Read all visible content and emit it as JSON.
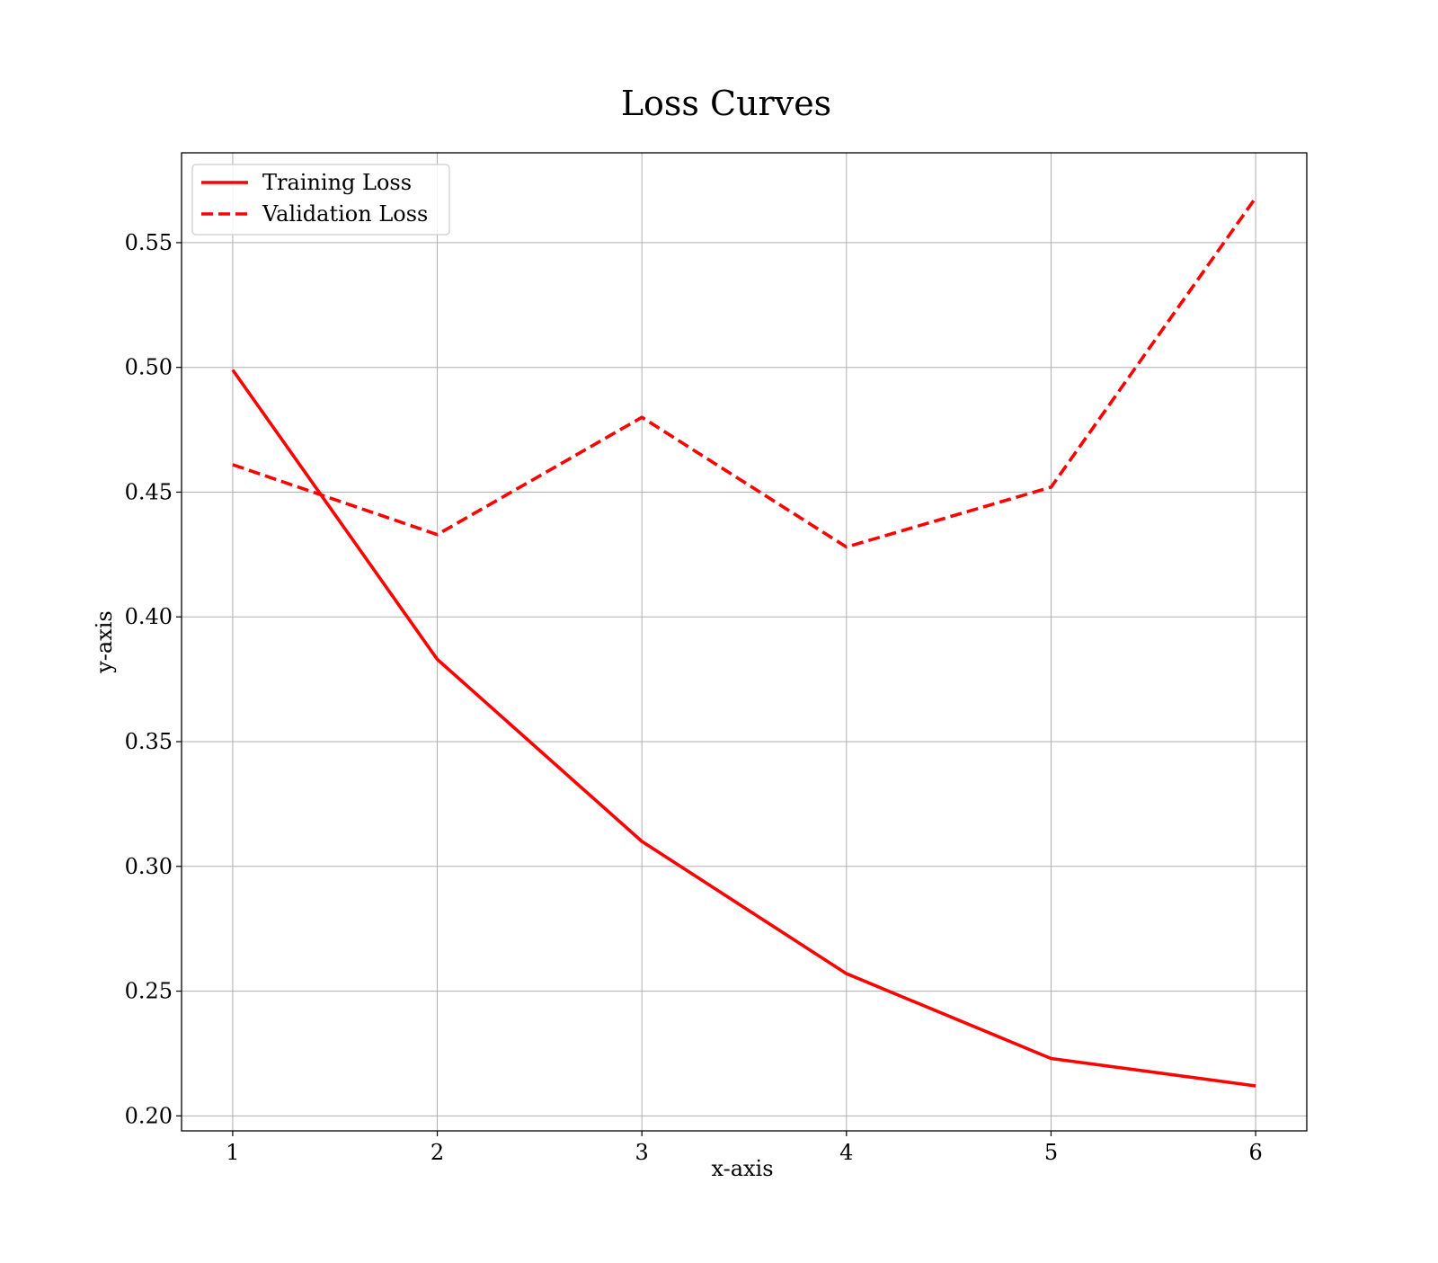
{
  "chart_data": {
    "type": "line",
    "title": "Loss Curves",
    "xlabel": "x-axis",
    "ylabel": "y-axis",
    "x": [
      1,
      2,
      3,
      4,
      5,
      6
    ],
    "xticks": [
      "1",
      "2",
      "3",
      "4",
      "5",
      "6"
    ],
    "yticks": [
      "0.20",
      "0.25",
      "0.30",
      "0.35",
      "0.40",
      "0.45",
      "0.50",
      "0.55"
    ],
    "xlim": [
      0.75,
      6.25
    ],
    "ylim": [
      0.194,
      0.586
    ],
    "grid": true,
    "legend_position": "top-left",
    "series": [
      {
        "name": "Training Loss",
        "style": "solid",
        "color": "#ff0000",
        "values": [
          0.499,
          0.383,
          0.31,
          0.257,
          0.223,
          0.212
        ]
      },
      {
        "name": "Validation Loss",
        "style": "dashed",
        "color": "#ff0000",
        "values": [
          0.461,
          0.433,
          0.48,
          0.428,
          0.452,
          0.568
        ]
      }
    ]
  }
}
